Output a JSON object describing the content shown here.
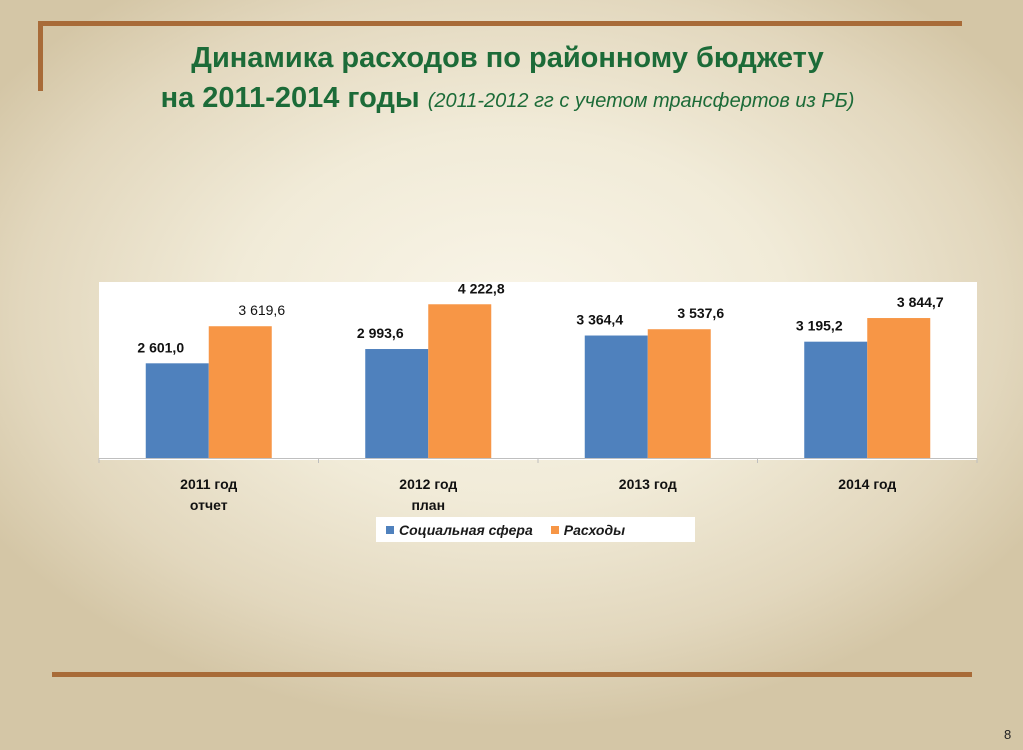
{
  "slide": {
    "title_line1": "Динамика расходов по районному бюджету",
    "title_line2": "на 2011-2014 годы",
    "title_note": "(2011-2012 гг с учетом трансфертов из РБ)",
    "page_number": "8"
  },
  "colors": {
    "social": "#4f81bd",
    "expenses": "#f79646",
    "frame": "#a86b38",
    "title": "#1c6b38"
  },
  "chart_data": {
    "type": "bar",
    "categories": [
      [
        "2011 год",
        "отчет"
      ],
      [
        "2012 год",
        "план"
      ],
      [
        "2013 год"
      ],
      [
        "2014 год"
      ]
    ],
    "series": [
      {
        "name": "Социальная сфера",
        "values": [
          2601.0,
          2993.6,
          3364.4,
          3195.2
        ],
        "labels": [
          "2 601,0",
          "2 993,6",
          "3 364,4",
          "3 195,2"
        ]
      },
      {
        "name": "Расходы",
        "values": [
          3619.6,
          4222.8,
          3537.6,
          3844.7
        ],
        "labels": [
          "3 619,6",
          "4 222,8",
          "3 537,6",
          "3 844,7"
        ]
      }
    ],
    "ylim": [
      0,
      4700
    ],
    "grid": false,
    "legend": "bottom"
  }
}
